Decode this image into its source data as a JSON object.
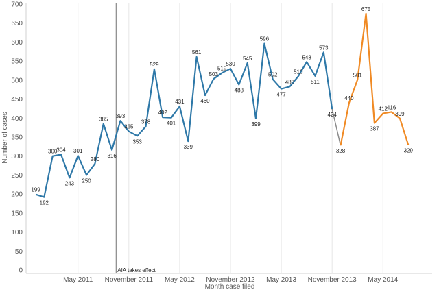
{
  "chart_data": {
    "type": "line",
    "xlabel": "Month case filed",
    "ylabel": "Number of cases",
    "ylim": [
      0,
      700
    ],
    "yticks": [
      0,
      50,
      100,
      150,
      200,
      250,
      300,
      350,
      400,
      450,
      500,
      550,
      600,
      650,
      700
    ],
    "x_tick_labels": [
      {
        "month": "2011-05",
        "label": "May 2011"
      },
      {
        "month": "2011-11",
        "label": "November 2011"
      },
      {
        "month": "2012-05",
        "label": "May 2012"
      },
      {
        "month": "2012-11",
        "label": "November 2012"
      },
      {
        "month": "2013-05",
        "label": "May 2013"
      },
      {
        "month": "2013-11",
        "label": "November 2013"
      },
      {
        "month": "2014-05",
        "label": "May 2014"
      }
    ],
    "grid": {
      "vertical": true,
      "horizontal": false
    },
    "colors": {
      "blue_series": "#2e78a8",
      "orange_series": "#f08a24",
      "reference_line": "#888888"
    },
    "annotation": {
      "month": "2011-09-16",
      "text": "AIA takes effect"
    },
    "series": [
      {
        "color": "#2e78a8",
        "x": [
          "2010-12",
          "2011-01",
          "2011-02",
          "2011-03",
          "2011-04",
          "2011-05",
          "2011-06",
          "2011-07",
          "2011-08",
          "2011-09",
          "2011-10",
          "2011-11",
          "2011-12",
          "2012-01",
          "2012-02",
          "2012-03",
          "2012-04",
          "2012-05",
          "2012-06",
          "2012-07",
          "2012-08",
          "2012-09",
          "2012-10",
          "2012-11",
          "2012-12",
          "2013-01",
          "2013-02",
          "2013-03",
          "2013-04",
          "2013-05",
          "2013-06",
          "2013-07",
          "2013-08",
          "2013-09",
          "2013-10",
          "2013-11",
          "2013-12",
          "2014-01"
        ],
        "values": [
          199,
          192,
          300,
          304,
          243,
          301,
          250,
          280,
          385,
          316,
          393,
          365,
          353,
          378,
          529,
          402,
          401,
          431,
          339,
          561,
          460,
          503,
          519,
          530,
          488,
          545,
          399,
          596,
          502,
          477,
          483,
          510,
          548,
          511,
          573,
          424,
          null,
          null
        ],
        "point_labels": [
          "199",
          "192",
          "300",
          "304",
          "243",
          "301",
          "250",
          "280",
          "385",
          "316",
          "393",
          "365",
          "353",
          "378",
          "529",
          "402",
          "401",
          "431",
          "339",
          "561",
          "460",
          "503",
          "519",
          "530",
          "488",
          "545",
          "399",
          "596",
          "502",
          "477",
          "483",
          "510",
          "548",
          "511",
          "573",
          "424",
          "",
          ""
        ]
      },
      {
        "color": "#f08a24",
        "x": [
          "2013-12",
          "2014-01",
          "2014-02",
          "2014-03",
          "2014-04",
          "2014-05",
          "2014-06",
          "2014-07",
          "2014-08",
          "2014-09"
        ],
        "values": [
          328,
          440,
          501,
          675,
          387,
          412,
          416,
          399,
          329,
          null
        ],
        "point_labels": [
          "328",
          "440",
          "501",
          "675",
          "387",
          "412",
          "416",
          "399",
          "329",
          ""
        ]
      }
    ],
    "bridge": {
      "from": {
        "x": "2013-11",
        "y": 424
      },
      "to": {
        "x": "2013-12",
        "y": 328
      }
    }
  }
}
